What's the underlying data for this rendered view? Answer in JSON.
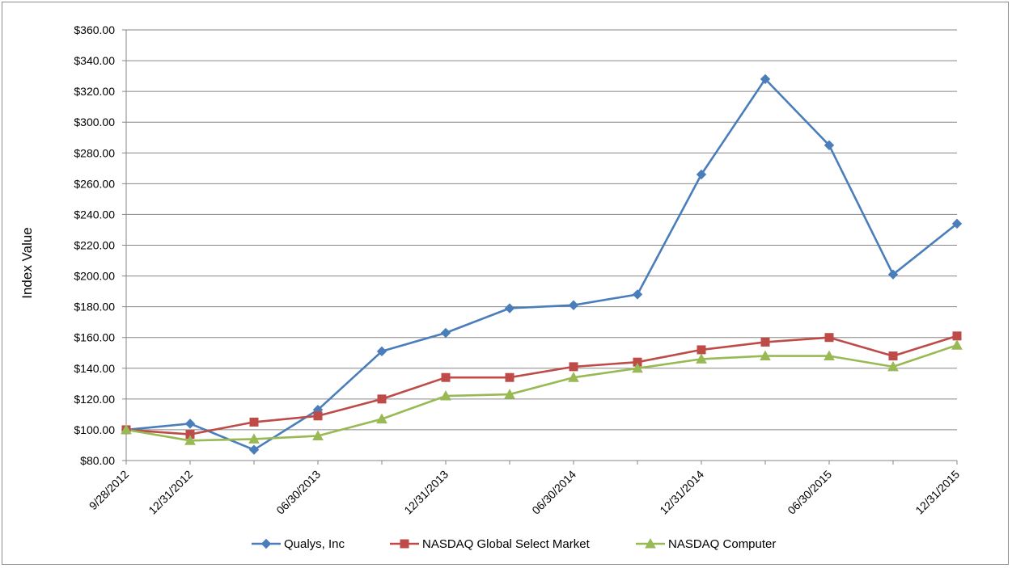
{
  "chart_data": {
    "type": "line",
    "title": "",
    "xlabel": "",
    "ylabel": "Index Value",
    "ylim": [
      80,
      360
    ],
    "y_tick_step": 20,
    "y_tick_format": "currency-2dp",
    "grid": "horizontal",
    "legend_placement": "bottom",
    "x_points": 14,
    "x_tick_labels": [
      {
        "index": 0,
        "label": "9/28/2012"
      },
      {
        "index": 1,
        "label": "12/31/2012"
      },
      {
        "index": 3,
        "label": "06/30/2013"
      },
      {
        "index": 5,
        "label": "12/31/2013"
      },
      {
        "index": 7,
        "label": "06/30/2014"
      },
      {
        "index": 9,
        "label": "12/31/2014"
      },
      {
        "index": 11,
        "label": "06/30/2015"
      },
      {
        "index": 13,
        "label": "12/31/2015"
      }
    ],
    "series": [
      {
        "name": "Qualys, Inc",
        "color": "#4a7ebb",
        "marker": "diamond",
        "values": [
          100,
          104,
          87,
          113,
          151,
          163,
          179,
          181,
          188,
          266,
          328,
          285,
          201,
          234
        ]
      },
      {
        "name": "NASDAQ Global Select Market",
        "color": "#be4b48",
        "marker": "square",
        "values": [
          100,
          97,
          105,
          109,
          120,
          134,
          134,
          141,
          144,
          152,
          157,
          160,
          148,
          161
        ]
      },
      {
        "name": "NASDAQ Computer",
        "color": "#98b954",
        "marker": "triangle",
        "values": [
          100,
          93,
          94,
          96,
          107,
          122,
          123,
          134,
          140,
          146,
          148,
          148,
          141,
          155
        ]
      }
    ]
  }
}
